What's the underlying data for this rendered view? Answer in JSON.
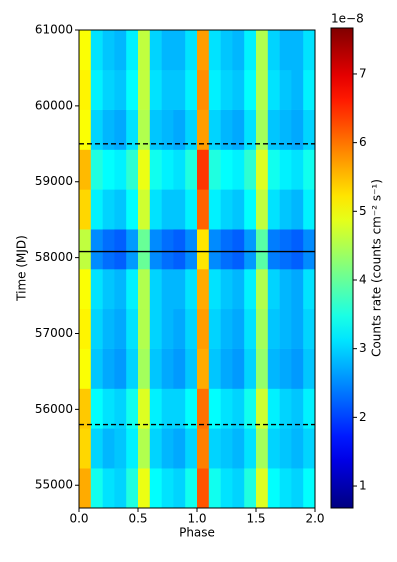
{
  "chart_data": {
    "type": "heatmap",
    "colormap": "jet",
    "x_label": "Phase",
    "y_label": "Time (MJD)",
    "colorbar_label": "Counts rate (counts cm⁻² s⁻¹)",
    "colorbar_offset": "1e−8",
    "xlim": [
      0,
      2
    ],
    "xticks": [
      {
        "value": 0,
        "label": "0.0"
      },
      {
        "value": 0.5,
        "label": "0.5"
      },
      {
        "value": 1,
        "label": "1.0"
      },
      {
        "value": 1.5,
        "label": "1.5"
      },
      {
        "value": 2,
        "label": "2.0"
      }
    ],
    "ylim": [
      54700,
      61000
    ],
    "yticks": [
      55000,
      56000,
      57000,
      58000,
      59000,
      60000,
      61000
    ],
    "clim": [
      0.68,
      7.64
    ],
    "cticks": [
      1,
      2,
      3,
      4,
      5,
      6,
      7
    ],
    "x_edges": [
      0,
      0.1,
      0.2,
      0.3,
      0.4,
      0.5,
      0.6,
      0.7,
      0.8,
      0.9,
      1.0,
      1.1,
      1.2,
      1.3,
      1.4,
      1.5,
      1.6,
      1.7,
      1.8,
      1.9,
      2.0
    ],
    "y_edges": [
      54700,
      55225,
      55750,
      56275,
      56800,
      57325,
      57850,
      58375,
      58900,
      59425,
      59950,
      60475,
      61000
    ],
    "z": [
      [
        5.6,
        3.4,
        3.1,
        3.0,
        3.5,
        4.9,
        3.3,
        3.1,
        3.0,
        3.4,
        6.2,
        3.4,
        3.1,
        3.0,
        3.5,
        4.8,
        3.3,
        3.1,
        3.0,
        3.3
      ],
      [
        5.3,
        3.0,
        2.8,
        2.9,
        3.2,
        4.5,
        3.0,
        2.8,
        2.7,
        3.0,
        5.9,
        3.0,
        2.9,
        2.8,
        3.1,
        4.4,
        3.0,
        2.9,
        2.8,
        3.0
      ],
      [
        5.4,
        3.3,
        3.1,
        3.0,
        3.4,
        4.8,
        3.2,
        3.0,
        3.0,
        3.3,
        6.0,
        3.3,
        3.1,
        3.0,
        3.4,
        4.7,
        3.2,
        3.0,
        2.9,
        3.2
      ],
      [
        5.0,
        2.9,
        2.7,
        2.6,
        3.0,
        4.4,
        2.9,
        2.7,
        2.6,
        2.9,
        5.6,
        2.9,
        2.7,
        2.6,
        3.0,
        4.3,
        2.8,
        2.7,
        2.6,
        2.9
      ],
      [
        5.1,
        3.0,
        2.8,
        2.7,
        3.1,
        4.5,
        3.0,
        2.8,
        2.7,
        3.0,
        5.7,
        3.0,
        2.8,
        2.7,
        3.1,
        4.4,
        2.9,
        2.8,
        2.7,
        3.0
      ],
      [
        5.0,
        3.1,
        2.9,
        2.8,
        3.2,
        4.5,
        3.0,
        2.8,
        2.8,
        3.1,
        5.6,
        3.1,
        2.9,
        2.8,
        3.2,
        4.5,
        3.0,
        2.8,
        2.7,
        3.1
      ],
      [
        4.6,
        2.5,
        2.3,
        2.2,
        2.6,
        4.0,
        2.5,
        2.3,
        2.2,
        2.5,
        5.2,
        2.5,
        2.3,
        2.2,
        2.6,
        3.9,
        2.4,
        2.3,
        2.2,
        2.5
      ],
      [
        5.3,
        3.2,
        3.0,
        2.9,
        3.3,
        4.7,
        3.1,
        2.9,
        2.9,
        3.2,
        6.1,
        3.2,
        3.0,
        2.9,
        3.3,
        4.6,
        3.1,
        2.9,
        2.8,
        3.2
      ],
      [
        5.5,
        3.5,
        3.3,
        3.2,
        3.6,
        4.9,
        3.4,
        3.2,
        3.1,
        3.5,
        6.4,
        3.5,
        3.3,
        3.2,
        3.6,
        4.8,
        3.4,
        3.2,
        3.1,
        3.4
      ],
      [
        5.0,
        3.0,
        2.8,
        2.7,
        3.1,
        4.5,
        2.9,
        2.8,
        2.7,
        3.0,
        5.7,
        3.0,
        2.8,
        2.7,
        3.1,
        4.4,
        2.9,
        2.8,
        2.7,
        3.0
      ],
      [
        5.1,
        3.2,
        3.0,
        2.9,
        3.3,
        4.6,
        3.1,
        2.9,
        2.9,
        3.2,
        5.8,
        3.2,
        3.0,
        2.9,
        3.3,
        4.5,
        3.1,
        2.9,
        2.8,
        3.2
      ],
      [
        5.0,
        3.1,
        2.9,
        2.8,
        3.2,
        4.6,
        3.0,
        2.8,
        2.8,
        3.1,
        5.7,
        3.1,
        2.9,
        2.8,
        3.2,
        4.5,
        3.0,
        2.8,
        2.8,
        3.1
      ]
    ],
    "hlines": [
      {
        "value": 55800,
        "style": "dashed"
      },
      {
        "value": 58080,
        "style": "solid"
      },
      {
        "value": 59500,
        "style": "dashed"
      }
    ]
  }
}
